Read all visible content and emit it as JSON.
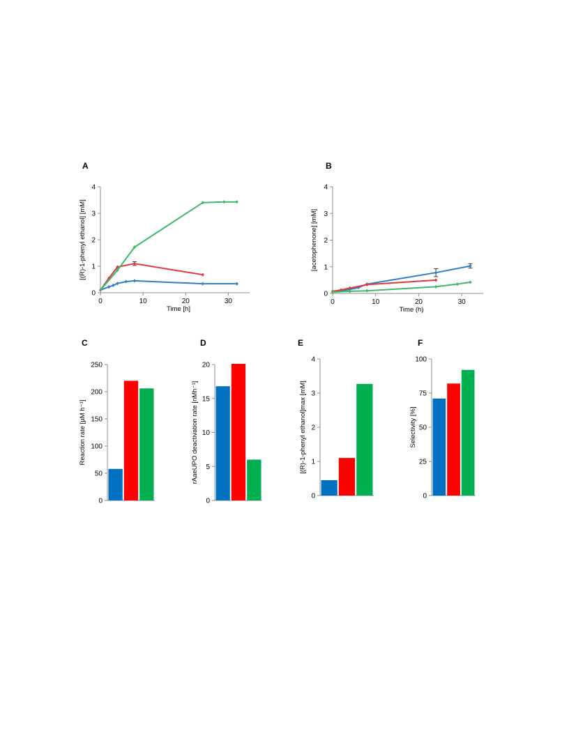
{
  "colors": {
    "blue": "#2e7fc3",
    "red": "#e0393b",
    "green": "#3cb96a",
    "bar_blue": "#0070c0",
    "bar_red": "#ff0000",
    "bar_green": "#00b050"
  },
  "chart_data": [
    {
      "panel": "A",
      "type": "line",
      "xlabel": "Time [h]",
      "ylabel": "[(R)-1-phenyl ethanol] [mM]",
      "xlim": [
        0,
        35
      ],
      "ylim": [
        0,
        4
      ],
      "xticks": [
        0,
        10,
        20,
        30
      ],
      "yticks": [
        0,
        1,
        2,
        3,
        4
      ],
      "series": [
        {
          "color": "blue",
          "x": [
            0,
            2,
            3,
            4,
            6,
            8,
            24,
            32
          ],
          "y": [
            0.1,
            0.22,
            0.28,
            0.35,
            0.42,
            0.45,
            0.34,
            0.34
          ]
        },
        {
          "color": "red",
          "x": [
            0,
            2,
            4,
            8,
            24
          ],
          "y": [
            0.1,
            0.55,
            0.97,
            1.1,
            0.68
          ],
          "err": [
            0,
            0,
            0,
            0.07,
            0
          ]
        },
        {
          "color": "green",
          "x": [
            0,
            4,
            8,
            24,
            29,
            32
          ],
          "y": [
            0.1,
            0.85,
            1.72,
            3.4,
            3.43,
            3.43
          ]
        }
      ]
    },
    {
      "panel": "B",
      "type": "line",
      "xlabel": "Time (h)",
      "ylabel": "[acetophenone] [mM]",
      "xlim": [
        0,
        35
      ],
      "ylim": [
        0,
        4
      ],
      "xticks": [
        0,
        10,
        20,
        30
      ],
      "yticks": [
        0,
        1,
        2,
        3,
        4
      ],
      "series": [
        {
          "color": "blue",
          "x": [
            0,
            2,
            4,
            6,
            8,
            24,
            32
          ],
          "y": [
            0.05,
            0.1,
            0.15,
            0.22,
            0.35,
            0.78,
            1.03
          ],
          "err": [
            0,
            0,
            0,
            0,
            0,
            0.15,
            0.08
          ]
        },
        {
          "color": "red",
          "x": [
            0,
            2,
            4,
            8,
            24
          ],
          "y": [
            0.08,
            0.13,
            0.2,
            0.33,
            0.5
          ]
        },
        {
          "color": "green",
          "x": [
            0,
            4,
            8,
            24,
            29,
            32
          ],
          "y": [
            0.05,
            0.08,
            0.1,
            0.25,
            0.35,
            0.42
          ]
        }
      ]
    },
    {
      "panel": "C",
      "type": "bar",
      "ylabel": "Reaction rate [µM h⁻¹]",
      "ylim": [
        0,
        250
      ],
      "yticks": [
        0,
        50,
        100,
        150,
        200,
        250
      ],
      "values": [
        58,
        220,
        206
      ],
      "bar_colors": [
        "bar_blue",
        "bar_red",
        "bar_green"
      ]
    },
    {
      "panel": "D",
      "type": "bar",
      "ylabel": "rAaeUPO deactivation rate [nMh⁻¹]",
      "ylim": [
        0,
        20
      ],
      "yticks": [
        0,
        5,
        10,
        15,
        20
      ],
      "values": [
        16.8,
        20.1,
        6.0
      ],
      "bar_colors": [
        "bar_blue",
        "bar_red",
        "bar_green"
      ]
    },
    {
      "panel": "E",
      "type": "bar",
      "ylabel": "[(R)-1-phenyl ethanol]max [mM]",
      "ylim": [
        0,
        4
      ],
      "yticks": [
        0,
        1,
        2,
        3,
        4
      ],
      "values": [
        0.45,
        1.1,
        3.27
      ],
      "bar_colors": [
        "bar_blue",
        "bar_red",
        "bar_green"
      ]
    },
    {
      "panel": "F",
      "type": "bar",
      "ylabel": "Selectivity [%]",
      "ylim": [
        0,
        100
      ],
      "yticks": [
        0,
        25,
        50,
        75,
        100
      ],
      "values": [
        71,
        82,
        92
      ],
      "bar_colors": [
        "bar_blue",
        "bar_red",
        "bar_green"
      ]
    }
  ]
}
